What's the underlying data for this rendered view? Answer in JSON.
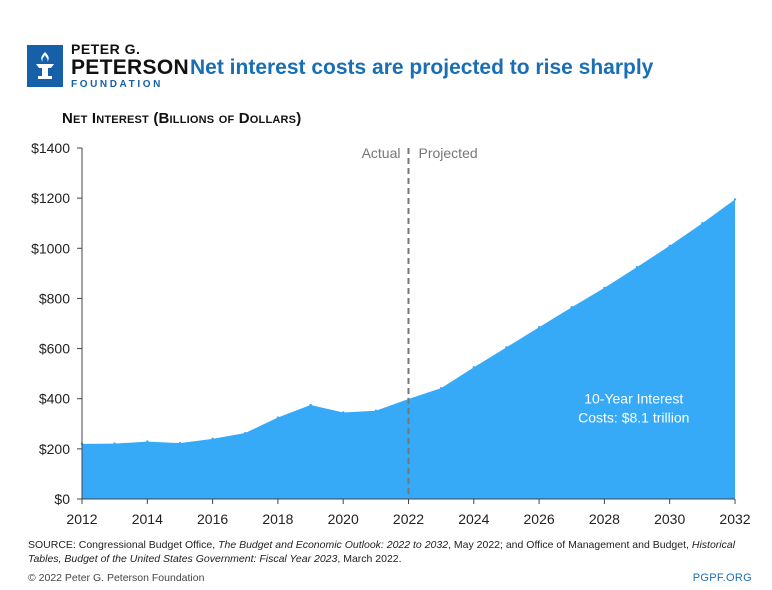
{
  "brand": {
    "line1": "PETER G.",
    "line2": "PETERSON",
    "line3": "FOUNDATION",
    "logo_icon": "torch-icon",
    "color": "#1560a8"
  },
  "title": "Net interest costs are projected to rise sharply",
  "colors": {
    "area": "#36a9f7",
    "title": "#1a6eb5",
    "divider": "#777777",
    "annotation": "#ffffff"
  },
  "chart_data": {
    "type": "area",
    "ylabel": "Net Interest (Billions of Dollars)",
    "x": [
      2012,
      2013,
      2014,
      2015,
      2016,
      2017,
      2018,
      2019,
      2020,
      2021,
      2022,
      2023,
      2024,
      2025,
      2026,
      2027,
      2028,
      2029,
      2030,
      2031,
      2032
    ],
    "values": [
      220,
      221,
      229,
      223,
      240,
      263,
      325,
      375,
      345,
      352,
      399,
      442,
      525,
      605,
      685,
      765,
      842,
      925,
      1010,
      1100,
      1195
    ],
    "xlim": [
      2012,
      2032
    ],
    "ylim": [
      0,
      1400
    ],
    "x_ticks": [
      2012,
      2014,
      2016,
      2018,
      2020,
      2022,
      2024,
      2026,
      2028,
      2030,
      2032
    ],
    "y_ticks": [
      0,
      200,
      400,
      600,
      800,
      1000,
      1200,
      1400
    ],
    "y_tick_labels": [
      "$0",
      "$200",
      "$400",
      "$600",
      "$800",
      "$1000",
      "$1200",
      "$1400"
    ],
    "divider_x": 2022,
    "divider_labels": {
      "left": "Actual",
      "right": "Projected"
    },
    "annotation": {
      "line1": "10-Year Interest",
      "line2": "Costs: $8.1 trillion"
    },
    "grid": false
  },
  "footer": {
    "source_prefix": "SOURCE: Congressional Budget Office, ",
    "source_italic1": "The Budget and Economic Outlook: 2022 to 2032",
    "source_mid": ", May 2022; and Office of Management and Budget, ",
    "source_italic2": "Historical Tables, Budget of the United States Government: Fiscal Year 2023",
    "source_suffix": ", March 2022.",
    "copyright": "© 2022 Peter G. Peterson Foundation",
    "site": "PGPF.ORG"
  }
}
